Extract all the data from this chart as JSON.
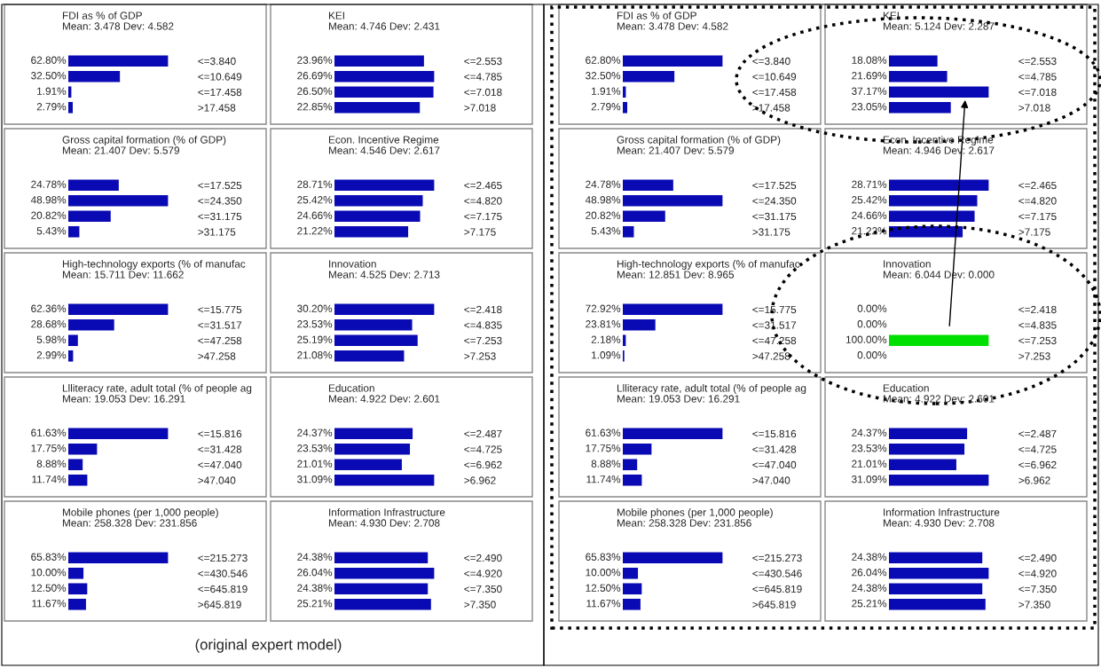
{
  "chart_data": [
    {
      "type": "bar",
      "orientation": "horizontal",
      "title": "FDI as % of GDP",
      "subtitle": "Mean: 3.478 Dev: 4.582",
      "categories": [
        "<=3.840",
        "<=10.649",
        "<=17.458",
        ">17.458"
      ],
      "values": [
        62.8,
        32.5,
        1.91,
        2.79
      ],
      "value_labels": [
        "62.80%",
        "32.50%",
        "1.91%",
        "2.79%"
      ],
      "color": "#0a0ab4",
      "tick_labels": "y"
    },
    {
      "type": "bar",
      "orientation": "horizontal",
      "title": "KEI",
      "subtitle": "Mean: 4.746 Dev: 2.431",
      "categories": [
        "<=2.553",
        "<=4.785",
        "<=7.018",
        ">7.018"
      ],
      "values": [
        23.96,
        26.69,
        26.5,
        22.85
      ],
      "value_labels": [
        "23.96%",
        "26.69%",
        "26.50%",
        "22.85%"
      ],
      "color": "#0a0ab4",
      "tick_labels": "y"
    },
    {
      "type": "bar",
      "orientation": "horizontal",
      "title": "Gross capital formation (% of GDP)",
      "subtitle": "Mean: 21.407 Dev: 5.579",
      "categories": [
        "<=17.525",
        "<=24.350",
        "<=31.175",
        ">31.175"
      ],
      "values": [
        24.78,
        48.98,
        20.82,
        5.43
      ],
      "value_labels": [
        "24.78%",
        "48.98%",
        "20.82%",
        "5.43%"
      ],
      "color": "#0a0ab4",
      "tick_labels": "y"
    },
    {
      "type": "bar",
      "orientation": "horizontal",
      "title": "Econ. Incentive Regime",
      "subtitle": "Mean: 4.546 Dev: 2.617",
      "categories": [
        "<=2.465",
        "<=4.820",
        "<=7.175",
        ">7.175"
      ],
      "values": [
        28.71,
        25.42,
        24.66,
        21.22
      ],
      "value_labels": [
        "28.71%",
        "25.42%",
        "24.66%",
        "21.22%"
      ],
      "color": "#0a0ab4",
      "tick_labels": "y"
    },
    {
      "type": "bar",
      "orientation": "horizontal",
      "title": "High-technology exports (% of manufac",
      "subtitle": "Mean: 15.711 Dev: 11.662",
      "categories": [
        "<=15.775",
        "<=31.517",
        "<=47.258",
        ">47.258"
      ],
      "values": [
        62.36,
        28.68,
        5.98,
        2.99
      ],
      "value_labels": [
        "62.36%",
        "28.68%",
        "5.98%",
        "2.99%"
      ],
      "color": "#0a0ab4",
      "tick_labels": "y"
    },
    {
      "type": "bar",
      "orientation": "horizontal",
      "title": "Innovation",
      "subtitle": "Mean: 4.525 Dev: 2.713",
      "categories": [
        "<=2.418",
        "<=4.835",
        "<=7.253",
        ">7.253"
      ],
      "values": [
        30.2,
        23.53,
        25.19,
        21.08
      ],
      "value_labels": [
        "30.20%",
        "23.53%",
        "25.19%",
        "21.08%"
      ],
      "color": "#0a0ab4",
      "tick_labels": "y"
    },
    {
      "type": "bar",
      "orientation": "horizontal",
      "title": "Llliteracy rate, adult total (% of people ag",
      "subtitle": "Mean: 19.053 Dev: 16.291",
      "categories": [
        "<=15.816",
        "<=31.428",
        "<=47.040",
        ">47.040"
      ],
      "values": [
        61.63,
        17.75,
        8.88,
        11.74
      ],
      "value_labels": [
        "61.63%",
        "17.75%",
        "8.88%",
        "11.74%"
      ],
      "color": "#0a0ab4",
      "tick_labels": "y"
    },
    {
      "type": "bar",
      "orientation": "horizontal",
      "title": "Education",
      "subtitle": "Mean: 4.922 Dev: 2.601",
      "categories": [
        "<=2.487",
        "<=4.725",
        "<=6.962",
        ">6.962"
      ],
      "values": [
        24.37,
        23.53,
        21.01,
        31.09
      ],
      "value_labels": [
        "24.37%",
        "23.53%",
        "21.01%",
        "31.09%"
      ],
      "color": "#0a0ab4",
      "tick_labels": "y"
    },
    {
      "type": "bar",
      "orientation": "horizontal",
      "title": "Mobile phones (per 1,000 people)",
      "subtitle": "Mean: 258.328 Dev: 231.856",
      "categories": [
        "<=215.273",
        "<=430.546",
        "<=645.819",
        ">645.819"
      ],
      "values": [
        65.83,
        10.0,
        12.5,
        11.67
      ],
      "value_labels": [
        "65.83%",
        "10.00%",
        "12.50%",
        "11.67%"
      ],
      "color": "#0a0ab4",
      "tick_labels": "y",
      "annotations": [
        "(original expert model)"
      ]
    },
    {
      "type": "bar",
      "orientation": "horizontal",
      "title": "Information Infrastructure",
      "subtitle": "Mean: 4.930 Dev: 2.708",
      "categories": [
        "<=2.490",
        "<=4.920",
        "<=7.350",
        ">7.350"
      ],
      "values": [
        24.38,
        26.04,
        24.38,
        25.21
      ],
      "value_labels": [
        "24.38%",
        "26.04%",
        "24.38%",
        "25.21%"
      ],
      "color": "#0a0ab4",
      "tick_labels": "y"
    },
    {
      "type": "bar",
      "orientation": "horizontal",
      "title": "FDI as % of GDP",
      "subtitle": "Mean: 3.478 Dev: 4.582",
      "categories": [
        "<=3.840",
        "<=10.649",
        "<=17.458",
        ">17.458"
      ],
      "values": [
        62.8,
        32.5,
        1.91,
        2.79
      ],
      "value_labels": [
        "62.80%",
        "32.50%",
        "1.91%",
        "2.79%"
      ],
      "color": "#0a0ab4",
      "tick_labels": "y"
    },
    {
      "type": "bar",
      "orientation": "horizontal",
      "title": "KEI",
      "subtitle": "Mean: 5.124 Dev: 2.287",
      "categories": [
        "<=2.553",
        "<=4.785",
        "<=7.018",
        ">7.018"
      ],
      "values": [
        18.08,
        21.69,
        37.17,
        23.05
      ],
      "value_labels": [
        "18.08%",
        "21.69%",
        "37.17%",
        "23.05%"
      ],
      "color": "#0a0ab4",
      "tick_labels": "y"
    },
    {
      "type": "bar",
      "orientation": "horizontal",
      "title": "Gross capital formation (% of GDP)",
      "subtitle": "Mean: 21.407 Dev: 5.579",
      "categories": [
        "<=17.525",
        "<=24.350",
        "<=31.175",
        ">31.175"
      ],
      "values": [
        24.78,
        48.98,
        20.82,
        5.43
      ],
      "value_labels": [
        "24.78%",
        "48.98%",
        "20.82%",
        "5.43%"
      ],
      "color": "#0a0ab4",
      "tick_labels": "y"
    },
    {
      "type": "bar",
      "orientation": "horizontal",
      "title": "Econ. Incentive Regime",
      "subtitle": "Mean: 4.946 Dev: 2.617",
      "categories": [
        "<=2.465",
        "<=4.820",
        "<=7.175",
        ">7.175"
      ],
      "values": [
        28.71,
        25.42,
        24.66,
        21.22
      ],
      "value_labels": [
        "28.71%",
        "25.42%",
        "24.66%",
        "21.22%"
      ],
      "color": "#0a0ab4",
      "tick_labels": "y"
    },
    {
      "type": "bar",
      "orientation": "horizontal",
      "title": "High-technology exports (% of manufac",
      "subtitle": "Mean: 12.851 Dev: 8.965",
      "categories": [
        "<=15.775",
        "<=31.517",
        "<=47.258",
        ">47.258"
      ],
      "values": [
        72.92,
        23.81,
        2.18,
        1.09
      ],
      "value_labels": [
        "72.92%",
        "23.81%",
        "2.18%",
        "1.09%"
      ],
      "color": "#0a0ab4",
      "tick_labels": "y"
    },
    {
      "type": "bar",
      "orientation": "horizontal",
      "title": "Innovation",
      "subtitle": "Mean: 6.044 Dev: 0.000",
      "categories": [
        "<=2.418",
        "<=4.835",
        "<=7.253",
        ">7.253"
      ],
      "values": [
        0.0,
        0.0,
        100.0,
        0.0
      ],
      "value_labels": [
        "0.00%",
        "0.00%",
        "100.00%",
        "0.00%"
      ],
      "colors": [
        "#0a0ab4",
        "#0a0ab4",
        "#00e000",
        "#0a0ab4"
      ],
      "tick_labels": "y"
    },
    {
      "type": "bar",
      "orientation": "horizontal",
      "title": "Llliteracy rate, adult total (% of people ag",
      "subtitle": "Mean: 19.053 Dev: 16.291",
      "categories": [
        "<=15.816",
        "<=31.428",
        "<=47.040",
        ">47.040"
      ],
      "values": [
        61.63,
        17.75,
        8.88,
        11.74
      ],
      "value_labels": [
        "61.63%",
        "17.75%",
        "8.88%",
        "11.74%"
      ],
      "color": "#0a0ab4",
      "tick_labels": "y"
    },
    {
      "type": "bar",
      "orientation": "horizontal",
      "title": "Education",
      "subtitle": "Mean: 4.922 Dev: 2.601",
      "categories": [
        "<=2.487",
        "<=4.725",
        "<=6.962",
        ">6.962"
      ],
      "values": [
        24.37,
        23.53,
        21.01,
        31.09
      ],
      "value_labels": [
        "24.37%",
        "23.53%",
        "21.01%",
        "31.09%"
      ],
      "color": "#0a0ab4",
      "tick_labels": "y"
    },
    {
      "type": "bar",
      "orientation": "horizontal",
      "title": "Mobile phones (per 1,000 people)",
      "subtitle": "Mean: 258.328 Dev: 231.856",
      "categories": [
        "<=215.273",
        "<=430.546",
        "<=645.819",
        ">645.819"
      ],
      "values": [
        65.83,
        10.0,
        12.5,
        11.67
      ],
      "value_labels": [
        "65.83%",
        "10.00%",
        "12.50%",
        "11.67%"
      ],
      "color": "#0a0ab4",
      "tick_labels": "y"
    },
    {
      "type": "bar",
      "orientation": "horizontal",
      "title": "Information Infrastructure",
      "subtitle": "Mean: 4.930 Dev: 2.708",
      "categories": [
        "<=2.490",
        "<=4.920",
        "<=7.350",
        ">7.350"
      ],
      "values": [
        24.38,
        26.04,
        24.38,
        25.21
      ],
      "value_labels": [
        "24.38%",
        "26.04%",
        "24.38%",
        "25.21%"
      ],
      "color": "#0a0ab4",
      "tick_labels": "y"
    }
  ]
}
